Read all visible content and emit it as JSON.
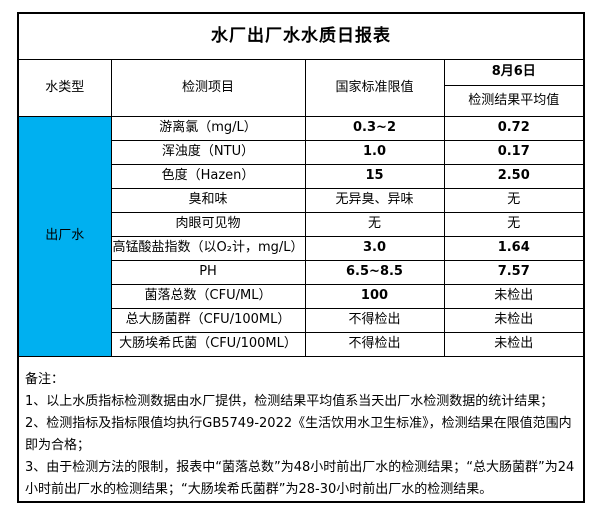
{
  "title": "水厂出厂水水质日报表",
  "colors": {
    "water_type_highlight": "#00B0F0",
    "border": "#000000",
    "background": "#ffffff"
  },
  "table": {
    "headers": {
      "water_type": "水类型",
      "item": "检测项目",
      "limit": "国家标准限值",
      "date": "8月6日",
      "result": "检测结果平均值"
    },
    "water_type_value": "出厂水",
    "rows": [
      {
        "item": "游离氯（mg/L）",
        "limit": "0.3~2",
        "result": "0.72"
      },
      {
        "item": "浑浊度（NTU）",
        "limit": "1.0",
        "result": "0.17"
      },
      {
        "item": "色度（Hazen）",
        "limit": "15",
        "result": "2.50"
      },
      {
        "item": "臭和味",
        "limit": "无异臭、异味",
        "result": "无"
      },
      {
        "item": "肉眼可见物",
        "limit": "无",
        "result": "无"
      },
      {
        "item": "高锰酸盐指数（以O₂计，mg/L）",
        "limit": "3.0",
        "result": "1.64"
      },
      {
        "item": "PH",
        "limit": "6.5~8.5",
        "result": "7.57"
      },
      {
        "item": "菌落总数（CFU/ML）",
        "limit": "100",
        "result": "未检出"
      },
      {
        "item": "总大肠菌群（CFU/100ML）",
        "limit": "不得检出",
        "result": "未检出"
      },
      {
        "item": "大肠埃希氏菌（CFU/100ML）",
        "limit": "不得检出",
        "result": "未检出"
      }
    ]
  },
  "notes": {
    "title": "备注：",
    "items": [
      "1、以上水质指标检测数据由水厂提供，检测结果平均值系当天出厂水检测数据的统计结果；",
      "2、检测指标及指标限值均执行GB5749-2022《生活饮用水卫生标准》，检测结果在限值范围内即为合格；",
      "3、由于检测方法的限制，报表中“菌落总数”为48小时前出厂水的检测结果；“总大肠菌群”为24小时前出厂水的检测结果；“大肠埃希氏菌群”为28-30小时前出厂水的检测结果。"
    ]
  }
}
